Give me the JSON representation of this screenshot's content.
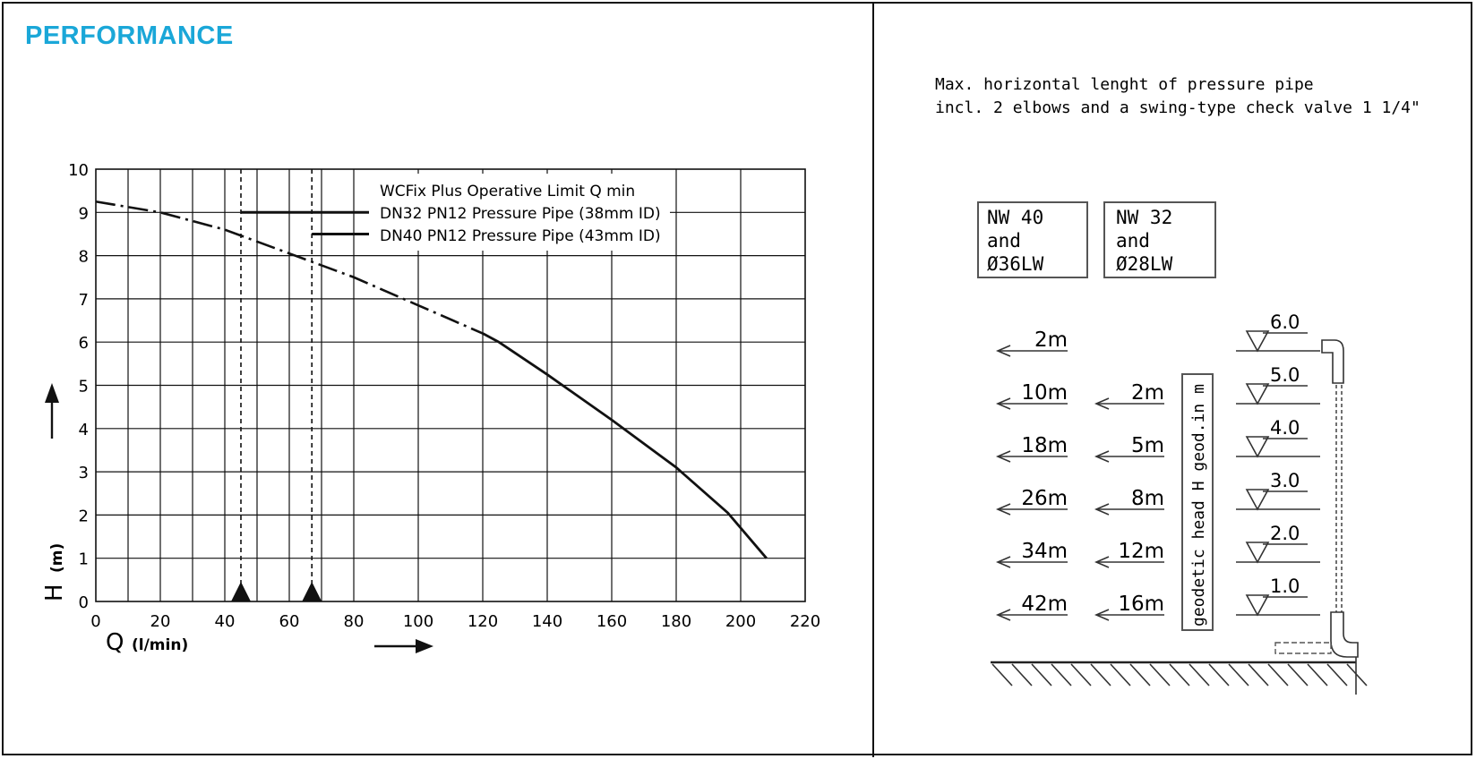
{
  "section_title": "PERFORMANCE",
  "chart_data": {
    "type": "line",
    "x": [
      0,
      20,
      40,
      60,
      80,
      100,
      120,
      125,
      140,
      160,
      180,
      196,
      208
    ],
    "series": [
      {
        "values": [
          9.25,
          9.0,
          8.6,
          8.05,
          7.5,
          6.85,
          6.2,
          6.0,
          5.25,
          4.2,
          3.1,
          2.05,
          1.0
        ]
      }
    ],
    "dashdot_until_x": 122,
    "xlim": [
      0,
      220
    ],
    "ylim": [
      0,
      10
    ],
    "x_ticks": [
      "0",
      "20",
      "40",
      "60",
      "80",
      "100",
      "120",
      "140",
      "160",
      "180",
      "200",
      "220"
    ],
    "y_ticks": [
      "0",
      "1",
      "2",
      "3",
      "4",
      "5",
      "6",
      "7",
      "8",
      "9",
      "10"
    ],
    "xlabel": "Q",
    "xlabel_unit": "(l/min)",
    "ylabel": "H",
    "ylabel_unit": "(m)",
    "grid": true,
    "vertical_markers": [
      {
        "x": 45,
        "line_y": 9.0
      },
      {
        "x": 67,
        "line_y": 8.5
      }
    ],
    "legend": [
      "WCFix Plus Operative Limit Q min",
      "DN32 PN12 Pressure Pipe (38mm ID)",
      "DN40 PN12 Pressure Pipe (43mm ID)"
    ]
  },
  "diagram": {
    "note_line1": "Max. horizontal lenght of pressure pipe",
    "note_line2": "incl. 2 elbows and a swing-type check valve 1 1/4\"",
    "box_nw40": [
      "NW 40",
      "and",
      "Ø36LW"
    ],
    "box_nw32": [
      "NW 32",
      "and",
      "Ø28LW"
    ],
    "col_nw40": [
      "2m",
      "10m",
      "18m",
      "26m",
      "34m",
      "42m"
    ],
    "col_nw32": [
      "2m",
      "5m",
      "8m",
      "12m",
      "16m"
    ],
    "head_levels": [
      "6.0",
      "5.0",
      "4.0",
      "3.0",
      "2.0",
      "1.0"
    ],
    "vertical_label": "geodetic head H geod.in m"
  }
}
